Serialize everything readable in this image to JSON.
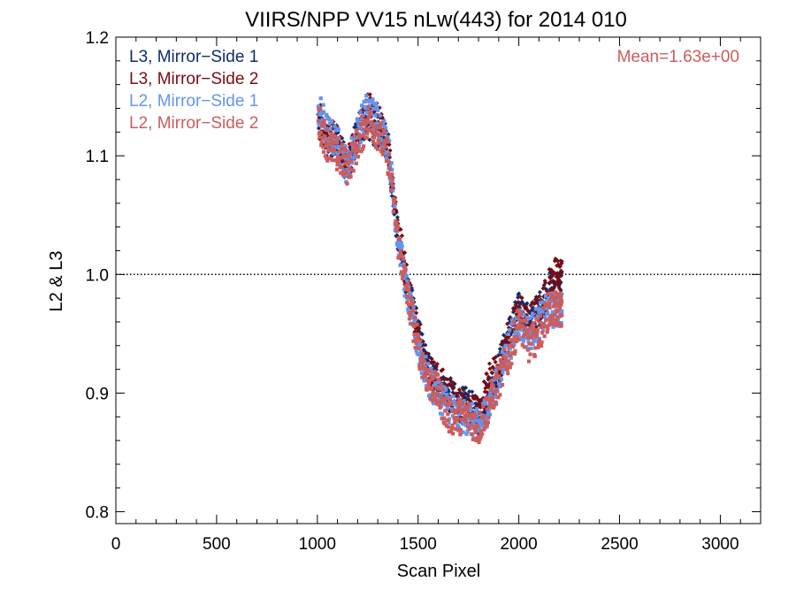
{
  "chart_data": {
    "type": "scatter",
    "title": "VIIRS/NPP VV15 nLw(443) for 2014 010",
    "xlabel": "Scan Pixel",
    "ylabel": "L2 & L3",
    "xlim": [
      0,
      3200
    ],
    "ylim": [
      0.79,
      1.2
    ],
    "xticks": [
      "0",
      "500",
      "1000",
      "1500",
      "2000",
      "2500",
      "3000"
    ],
    "yticks": [
      "0.8",
      "0.9",
      "1.0",
      "1.1",
      "1.2"
    ],
    "reference_line": {
      "y": 1.0,
      "style": "dotted"
    },
    "annotation": {
      "text": "Mean=1.63e+00",
      "color": "#cd5c5c",
      "placement": "top-right"
    },
    "legend_placement": "top-left",
    "grid": false,
    "series": [
      {
        "name": "L3, Mirror−Side 1",
        "color": "#0c2e6e",
        "x": [
          1005,
          1050,
          1100,
          1150,
          1200,
          1250,
          1300,
          1350,
          1400,
          1450,
          1500,
          1550,
          1600,
          1650,
          1700,
          1750,
          1800,
          1850,
          1900,
          1950,
          2000,
          2050,
          2100,
          2150,
          2185
        ],
        "y": [
          1.13,
          1.11,
          1.11,
          1.09,
          1.12,
          1.13,
          1.12,
          1.11,
          1.03,
          0.99,
          0.95,
          0.92,
          0.91,
          0.9,
          0.89,
          0.89,
          0.88,
          0.9,
          0.92,
          0.95,
          0.97,
          0.96,
          0.97,
          0.99,
          0.99
        ]
      },
      {
        "name": "L3, Mirror−Side 2",
        "color": "#7a0b14",
        "x": [
          1005,
          1050,
          1100,
          1150,
          1200,
          1250,
          1300,
          1350,
          1400,
          1450,
          1500,
          1550,
          1600,
          1650,
          1700,
          1750,
          1800,
          1850,
          1900,
          1950,
          2000,
          2050,
          2100,
          2150,
          2185
        ],
        "y": [
          1.13,
          1.12,
          1.11,
          1.09,
          1.12,
          1.14,
          1.13,
          1.11,
          1.04,
          0.99,
          0.95,
          0.92,
          0.91,
          0.9,
          0.89,
          0.89,
          0.88,
          0.91,
          0.92,
          0.95,
          0.97,
          0.96,
          0.97,
          0.99,
          1.0
        ]
      },
      {
        "name": "L2, Mirror−Side 1",
        "color": "#6495ed",
        "x": [
          1005,
          1050,
          1100,
          1150,
          1200,
          1250,
          1300,
          1350,
          1400,
          1450,
          1500,
          1550,
          1600,
          1650,
          1700,
          1750,
          1800,
          1850,
          1900,
          1950,
          2000,
          2050,
          2100,
          2150,
          2185
        ],
        "y": [
          1.14,
          1.12,
          1.11,
          1.09,
          1.12,
          1.14,
          1.13,
          1.11,
          1.03,
          0.98,
          0.94,
          0.91,
          0.9,
          0.89,
          0.88,
          0.88,
          0.87,
          0.89,
          0.91,
          0.94,
          0.96,
          0.95,
          0.96,
          0.97,
          0.97
        ]
      },
      {
        "name": "L2, Mirror−Side 2",
        "color": "#cd5c5c",
        "x": [
          1005,
          1050,
          1100,
          1150,
          1200,
          1250,
          1300,
          1350,
          1400,
          1450,
          1500,
          1550,
          1600,
          1650,
          1700,
          1750,
          1800,
          1850,
          1900,
          1950,
          2000,
          2050,
          2100,
          2150,
          2185
        ],
        "y": [
          1.13,
          1.11,
          1.1,
          1.09,
          1.11,
          1.13,
          1.12,
          1.1,
          1.03,
          0.98,
          0.94,
          0.91,
          0.9,
          0.88,
          0.88,
          0.88,
          0.87,
          0.89,
          0.91,
          0.93,
          0.96,
          0.94,
          0.95,
          0.97,
          0.97
        ]
      }
    ]
  }
}
